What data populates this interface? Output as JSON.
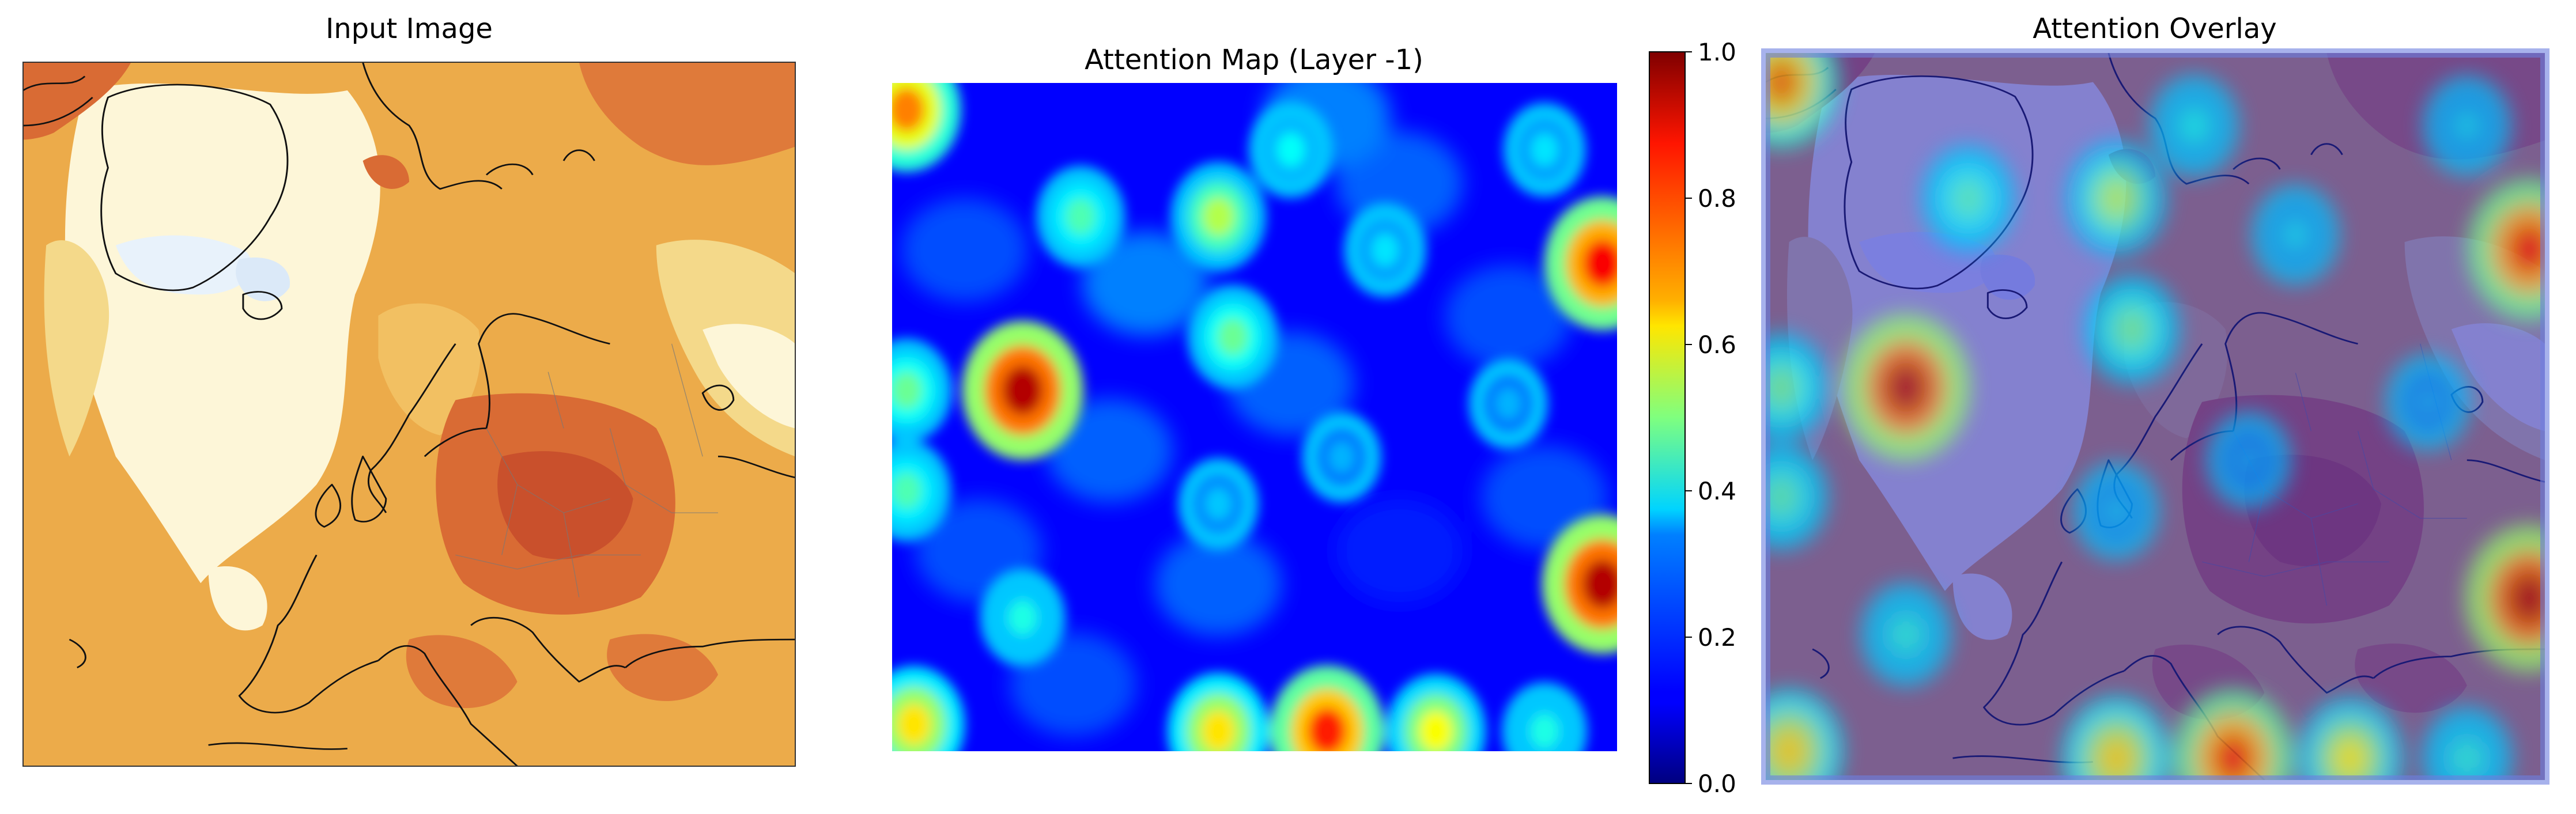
{
  "panels": {
    "input": {
      "title": "Input Image"
    },
    "attention": {
      "title": "Attention Map (Layer -1)"
    },
    "overlay": {
      "title": "Attention Overlay"
    }
  },
  "colorbar": {
    "colormap": "jet",
    "range": [
      0.0,
      1.0
    ],
    "ticks": [
      "0.0",
      "0.2",
      "0.4",
      "0.6",
      "0.8",
      "1.0"
    ]
  },
  "colors": {
    "jet_low": "#00007f",
    "jet_mid": "#7fff7f",
    "jet_high": "#7f0000",
    "input_cold": "#e8f2fb",
    "input_pale": "#fdf6d8",
    "input_warm": "#ecab4a",
    "input_hot": "#c9502c"
  },
  "chart_data": [
    {
      "type": "image",
      "title": "Input Image"
    },
    {
      "type": "heatmap",
      "title": "Attention Map (Layer -1)",
      "colormap": "jet",
      "vmin": 0.0,
      "vmax": 1.0,
      "colorbar_ticks": [
        0.0,
        0.2,
        0.4,
        0.6,
        0.8,
        1.0
      ],
      "hotspots": [
        {
          "x": 0.02,
          "y": 0.04,
          "value": 0.75
        },
        {
          "x": 0.26,
          "y": 0.2,
          "value": 0.45
        },
        {
          "x": 0.45,
          "y": 0.2,
          "value": 0.55
        },
        {
          "x": 0.55,
          "y": 0.1,
          "value": 0.38
        },
        {
          "x": 0.47,
          "y": 0.38,
          "value": 0.48
        },
        {
          "x": 0.68,
          "y": 0.25,
          "value": 0.35
        },
        {
          "x": 0.9,
          "y": 0.1,
          "value": 0.35
        },
        {
          "x": 0.98,
          "y": 0.27,
          "value": 0.88
        },
        {
          "x": 0.18,
          "y": 0.46,
          "value": 0.95
        },
        {
          "x": 0.02,
          "y": 0.46,
          "value": 0.48
        },
        {
          "x": 0.02,
          "y": 0.61,
          "value": 0.45
        },
        {
          "x": 0.98,
          "y": 0.75,
          "value": 0.95
        },
        {
          "x": 0.18,
          "y": 0.8,
          "value": 0.4
        },
        {
          "x": 0.45,
          "y": 0.63,
          "value": 0.32
        },
        {
          "x": 0.62,
          "y": 0.56,
          "value": 0.3
        },
        {
          "x": 0.85,
          "y": 0.48,
          "value": 0.3
        },
        {
          "x": 0.03,
          "y": 0.96,
          "value": 0.65
        },
        {
          "x": 0.45,
          "y": 0.97,
          "value": 0.65
        },
        {
          "x": 0.6,
          "y": 0.97,
          "value": 0.85
        },
        {
          "x": 0.75,
          "y": 0.97,
          "value": 0.62
        },
        {
          "x": 0.9,
          "y": 0.97,
          "value": 0.4
        }
      ]
    },
    {
      "type": "image",
      "title": "Attention Overlay"
    }
  ]
}
